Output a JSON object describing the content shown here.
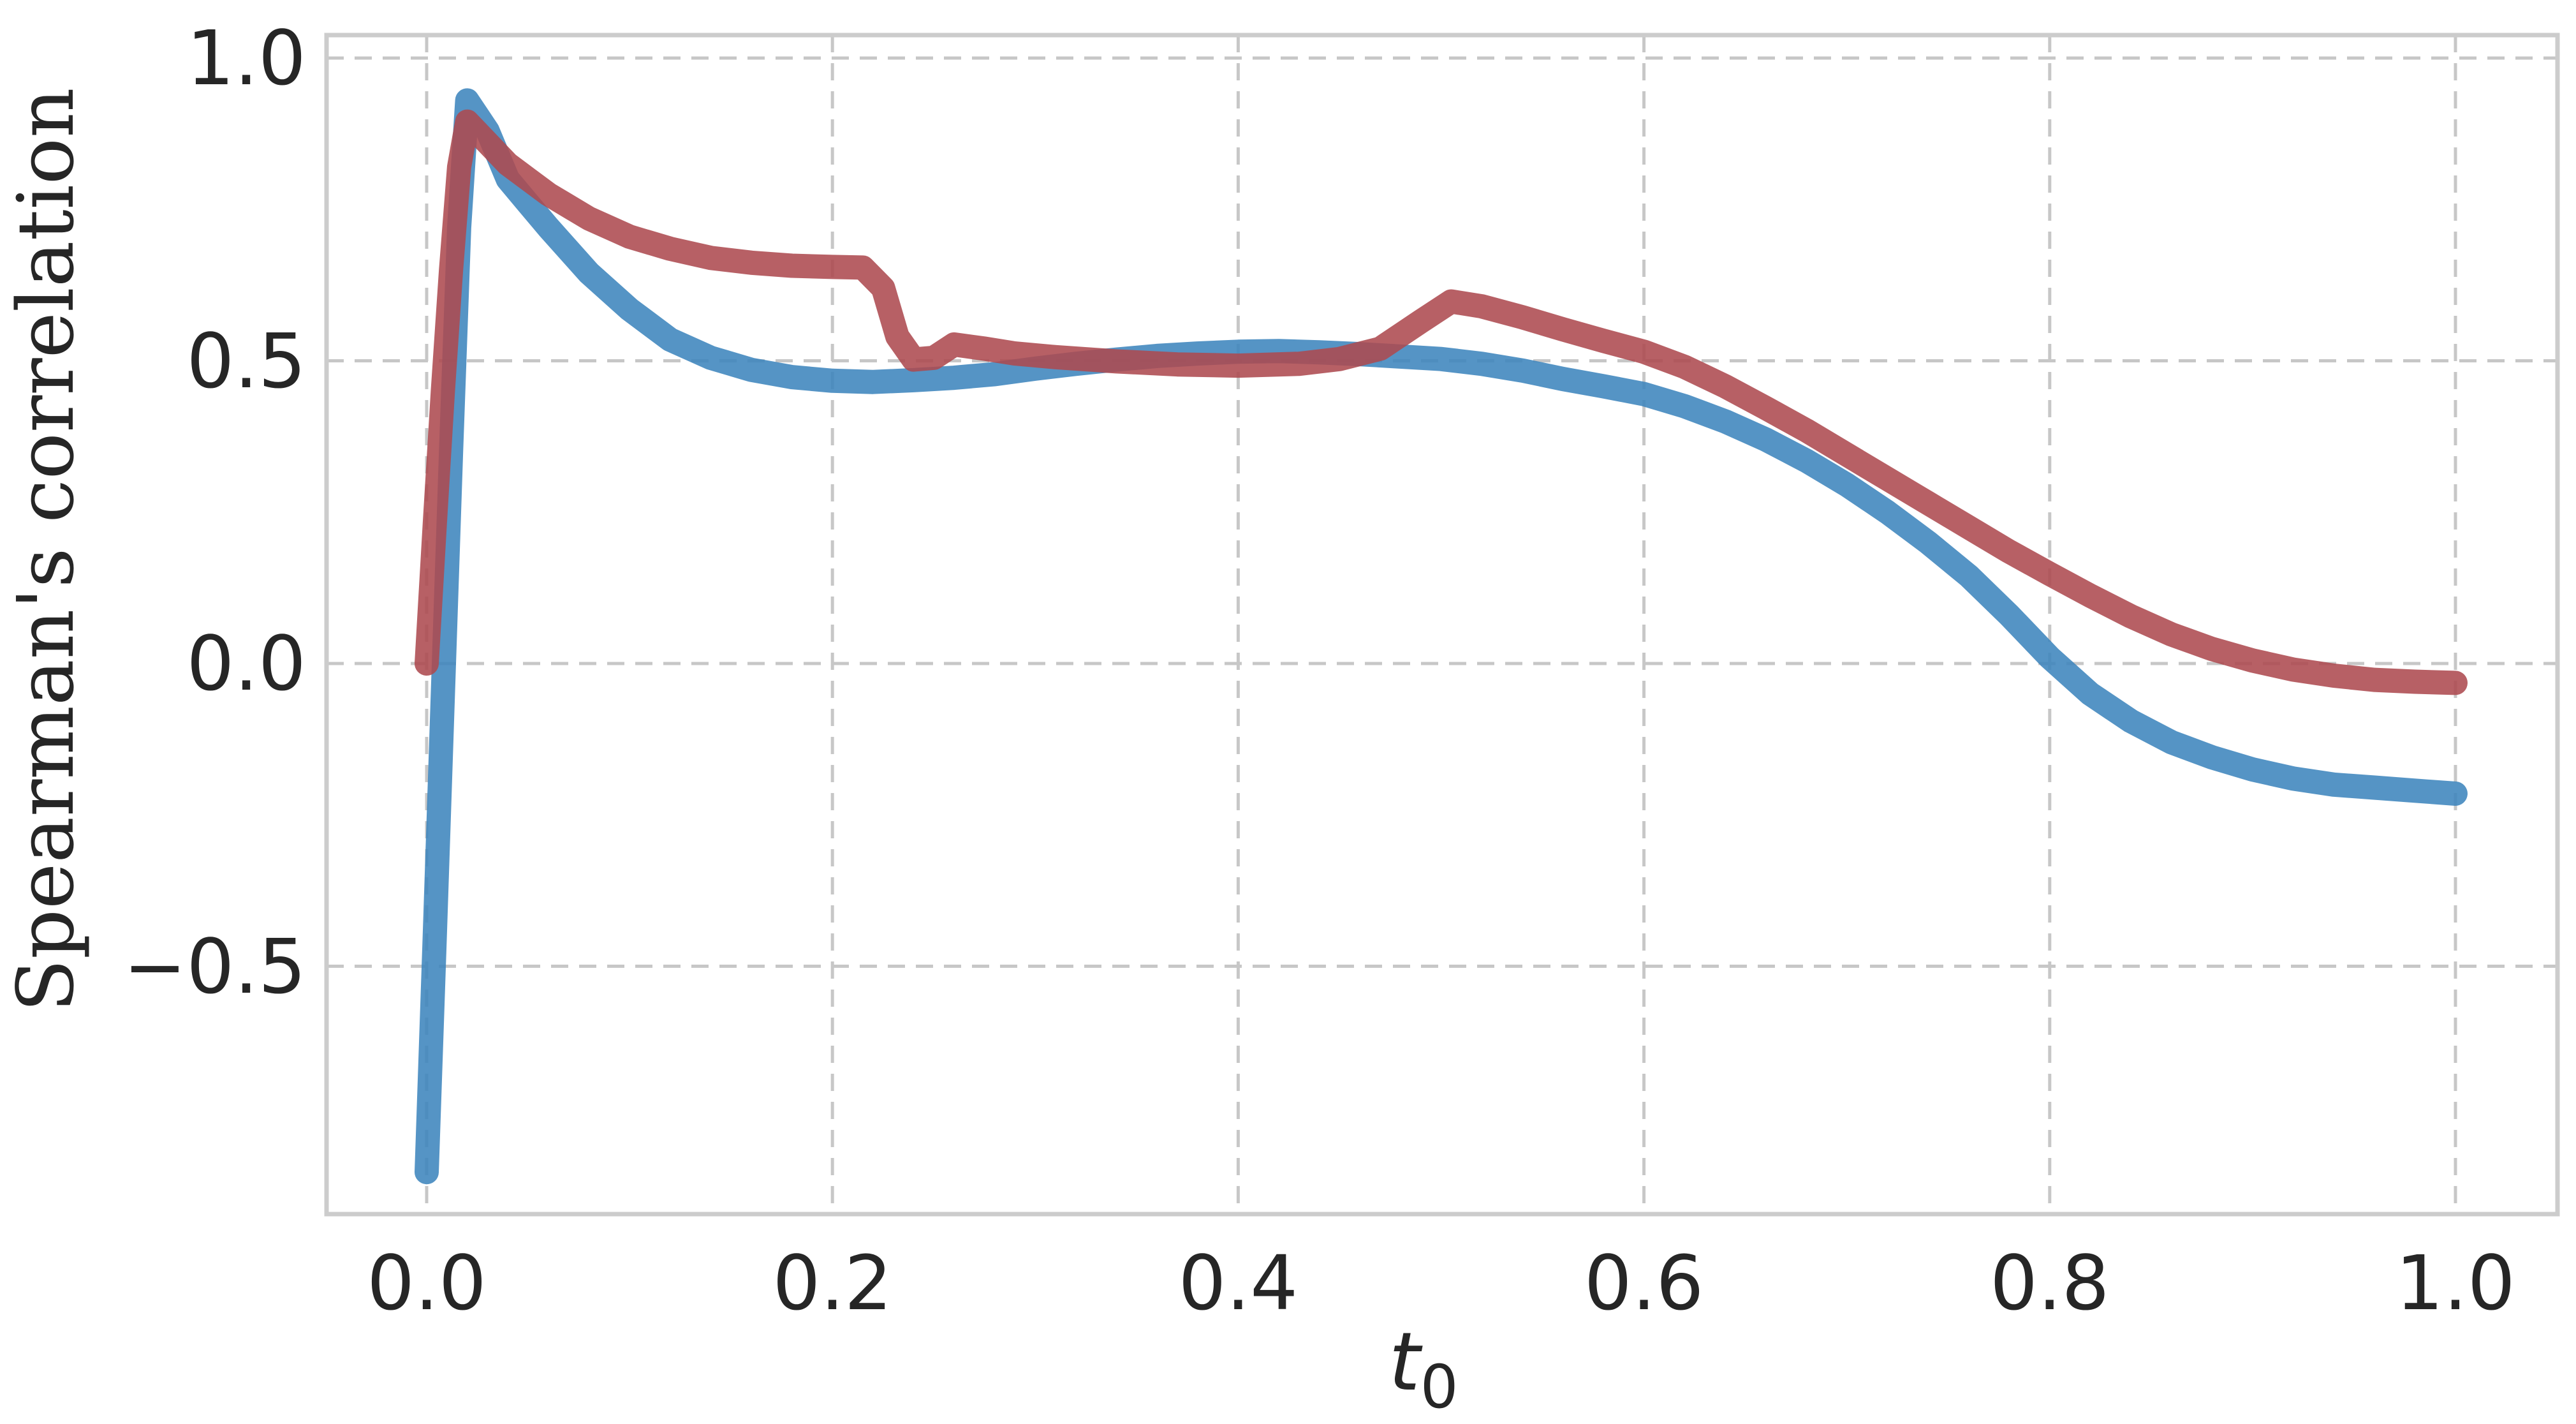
{
  "figure": {
    "background": "#ffffff"
  },
  "chart_data": {
    "type": "line",
    "title": "",
    "xlabel": "t",
    "xlabel_sub": "0",
    "ylabel": "Spearman's correlation",
    "xlim": [
      -0.05,
      1.05
    ],
    "ylim": [
      -0.91,
      1.04
    ],
    "grid": {
      "visible": true,
      "style": "dashed",
      "color": "#c7c7c7"
    },
    "legend_visible": false,
    "spine_color": "#cccccc",
    "text_color": "#262626",
    "xticks": {
      "values": [
        0.0,
        0.2,
        0.4,
        0.6,
        0.8,
        1.0
      ],
      "labels": [
        "0.0",
        "0.2",
        "0.4",
        "0.6",
        "0.8",
        "1.0"
      ]
    },
    "yticks": {
      "values": [
        1.0,
        0.5,
        0.0,
        -0.5
      ],
      "labels": [
        "1.0",
        "0.5",
        "0.0",
        "−0.5"
      ]
    },
    "series": [
      {
        "name": "blue-curve",
        "color": "#3d85bd",
        "opacity": 0.88,
        "line_width": 38,
        "x": [
          0.0,
          0.004,
          0.008,
          0.012,
          0.016,
          0.02,
          0.03,
          0.04,
          0.05,
          0.06,
          0.08,
          0.1,
          0.12,
          0.14,
          0.16,
          0.18,
          0.2,
          0.22,
          0.24,
          0.26,
          0.28,
          0.3,
          0.32,
          0.34,
          0.36,
          0.38,
          0.4,
          0.42,
          0.44,
          0.46,
          0.48,
          0.5,
          0.52,
          0.54,
          0.56,
          0.58,
          0.6,
          0.62,
          0.64,
          0.66,
          0.68,
          0.7,
          0.72,
          0.74,
          0.76,
          0.78,
          0.8,
          0.82,
          0.84,
          0.86,
          0.88,
          0.9,
          0.92,
          0.94,
          0.96,
          0.98,
          1.0
        ],
        "y": [
          -0.84,
          -0.45,
          -0.05,
          0.35,
          0.72,
          0.93,
          0.88,
          0.8,
          0.76,
          0.72,
          0.645,
          0.585,
          0.535,
          0.505,
          0.485,
          0.473,
          0.467,
          0.465,
          0.468,
          0.472,
          0.478,
          0.487,
          0.495,
          0.502,
          0.508,
          0.512,
          0.515,
          0.516,
          0.514,
          0.511,
          0.507,
          0.503,
          0.495,
          0.484,
          0.47,
          0.458,
          0.445,
          0.425,
          0.4,
          0.37,
          0.335,
          0.295,
          0.25,
          0.2,
          0.145,
          0.08,
          0.01,
          -0.05,
          -0.095,
          -0.13,
          -0.155,
          -0.175,
          -0.19,
          -0.2,
          -0.205,
          -0.21,
          -0.215
        ]
      },
      {
        "name": "red-curve",
        "color": "#ad4a50",
        "opacity": 0.88,
        "line_width": 38,
        "x": [
          0.0,
          0.004,
          0.008,
          0.012,
          0.016,
          0.02,
          0.03,
          0.04,
          0.05,
          0.06,
          0.08,
          0.1,
          0.12,
          0.14,
          0.16,
          0.18,
          0.2,
          0.215,
          0.225,
          0.232,
          0.24,
          0.25,
          0.26,
          0.275,
          0.29,
          0.31,
          0.34,
          0.37,
          0.4,
          0.43,
          0.45,
          0.47,
          0.49,
          0.505,
          0.52,
          0.54,
          0.56,
          0.58,
          0.6,
          0.62,
          0.64,
          0.66,
          0.68,
          0.7,
          0.72,
          0.74,
          0.76,
          0.78,
          0.8,
          0.82,
          0.84,
          0.86,
          0.88,
          0.9,
          0.92,
          0.94,
          0.96,
          0.98,
          1.0
        ],
        "y": [
          0.0,
          0.23,
          0.45,
          0.65,
          0.82,
          0.895,
          0.86,
          0.825,
          0.8,
          0.775,
          0.735,
          0.705,
          0.685,
          0.67,
          0.662,
          0.657,
          0.655,
          0.654,
          0.62,
          0.54,
          0.502,
          0.505,
          0.527,
          0.52,
          0.512,
          0.506,
          0.499,
          0.494,
          0.492,
          0.495,
          0.503,
          0.52,
          0.565,
          0.598,
          0.59,
          0.572,
          0.552,
          0.533,
          0.515,
          0.49,
          0.458,
          0.422,
          0.385,
          0.345,
          0.305,
          0.265,
          0.225,
          0.185,
          0.148,
          0.112,
          0.078,
          0.048,
          0.024,
          0.005,
          -0.01,
          -0.02,
          -0.027,
          -0.03,
          -0.032
        ]
      }
    ]
  }
}
